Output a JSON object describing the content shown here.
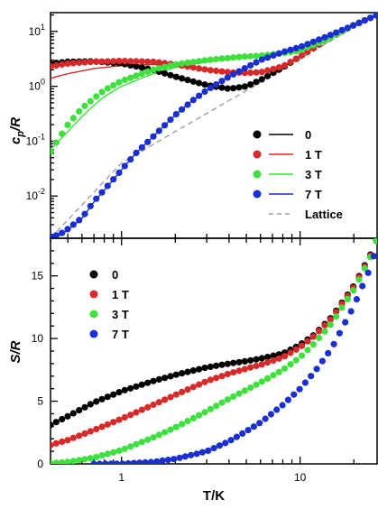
{
  "chart_data": [
    {
      "type": "scatter",
      "panel": "top",
      "ylabel_base": "c",
      "ylabel_sub": "p",
      "ylabel_tail": "/R",
      "xscale": "log",
      "yscale": "log",
      "xlim": [
        0.4,
        27
      ],
      "ylim": [
        0.0017,
        22
      ],
      "yticks": [
        {
          "value": 0.01,
          "base": "10",
          "exp": "-2"
        },
        {
          "value": 0.1,
          "base": "10",
          "exp": "-1"
        },
        {
          "value": 1,
          "base": "10",
          "exp": "0"
        },
        {
          "value": 10,
          "base": "10",
          "exp": "1"
        }
      ],
      "legend_position": "right",
      "series": [
        {
          "name": "0",
          "color": "#000000",
          "points": [
            [
              0.4,
              2.6
            ],
            [
              0.5,
              2.8
            ],
            [
              0.7,
              2.85
            ],
            [
              1,
              2.6
            ],
            [
              1.5,
              2.0
            ],
            [
              2,
              1.5
            ],
            [
              3,
              1.05
            ],
            [
              4,
              0.9
            ],
            [
              5,
              1.0
            ],
            [
              6,
              1.3
            ],
            [
              8,
              2.2
            ],
            [
              10,
              3.5
            ],
            [
              14,
              7
            ],
            [
              20,
              13
            ],
            [
              27,
              20
            ]
          ],
          "fit": [
            [
              0.4,
              2.4
            ],
            [
              0.5,
              2.7
            ],
            [
              0.7,
              2.8
            ],
            [
              1,
              2.55
            ],
            [
              1.5,
              1.95
            ],
            [
              2,
              1.45
            ],
            [
              3,
              1.0
            ],
            [
              4,
              0.9
            ],
            [
              5,
              1.0
            ],
            [
              6,
              1.3
            ],
            [
              8,
              2.2
            ],
            [
              10,
              3.5
            ],
            [
              14,
              7
            ],
            [
              20,
              13
            ],
            [
              27,
              20
            ]
          ]
        },
        {
          "name": "1 T",
          "color": "#d62a2a",
          "points": [
            [
              0.4,
              2.3
            ],
            [
              0.5,
              2.6
            ],
            [
              0.7,
              2.8
            ],
            [
              1,
              2.9
            ],
            [
              1.5,
              2.8
            ],
            [
              2,
              2.5
            ],
            [
              3,
              2.0
            ],
            [
              4,
              1.8
            ],
            [
              5,
              1.75
            ],
            [
              6,
              1.8
            ],
            [
              8,
              2.3
            ],
            [
              10,
              3.5
            ],
            [
              14,
              7
            ],
            [
              20,
              13
            ],
            [
              27,
              20
            ]
          ],
          "fit": [
            [
              0.4,
              1.4
            ],
            [
              0.5,
              1.7
            ],
            [
              0.7,
              2.1
            ],
            [
              1,
              2.4
            ],
            [
              1.5,
              2.5
            ],
            [
              2,
              2.3
            ],
            [
              3,
              1.95
            ],
            [
              4,
              1.8
            ],
            [
              5,
              1.75
            ],
            [
              6,
              1.8
            ],
            [
              8,
              2.3
            ],
            [
              10,
              3.5
            ],
            [
              14,
              7
            ],
            [
              20,
              13
            ],
            [
              27,
              20
            ]
          ]
        },
        {
          "name": "3 T",
          "color": "#3ee03e",
          "points": [
            [
              0.4,
              0.065
            ],
            [
              0.5,
              0.2
            ],
            [
              0.6,
              0.4
            ],
            [
              0.7,
              0.6
            ],
            [
              0.8,
              0.85
            ],
            [
              1,
              1.25
            ],
            [
              1.5,
              2.0
            ],
            [
              2,
              2.5
            ],
            [
              3,
              3.0
            ],
            [
              4,
              3.3
            ],
            [
              5,
              3.5
            ],
            [
              6,
              3.6
            ],
            [
              8,
              4
            ],
            [
              10,
              4.5
            ],
            [
              14,
              7
            ],
            [
              20,
              13
            ],
            [
              27,
              20
            ]
          ],
          "fit": [
            [
              0.4,
              0.07
            ],
            [
              0.5,
              0.15
            ],
            [
              0.6,
              0.28
            ],
            [
              0.7,
              0.45
            ],
            [
              0.8,
              0.65
            ],
            [
              1,
              1.0
            ],
            [
              1.5,
              1.7
            ],
            [
              2,
              2.2
            ],
            [
              3,
              2.8
            ],
            [
              4,
              3.1
            ],
            [
              5,
              3.3
            ],
            [
              6,
              3.5
            ],
            [
              8,
              3.9
            ],
            [
              10,
              4.5
            ],
            [
              14,
              7
            ],
            [
              20,
              13
            ],
            [
              27,
              20
            ]
          ]
        },
        {
          "name": "7 T",
          "color": "#1a2fd0",
          "points": [
            [
              0.4,
              0.0018
            ],
            [
              0.45,
              0.002
            ],
            [
              0.5,
              0.0025
            ],
            [
              0.6,
              0.004
            ],
            [
              0.7,
              0.008
            ],
            [
              0.8,
              0.013
            ],
            [
              1,
              0.03
            ],
            [
              1.2,
              0.06
            ],
            [
              1.5,
              0.12
            ],
            [
              2,
              0.3
            ],
            [
              2.5,
              0.55
            ],
            [
              3,
              0.85
            ],
            [
              4,
              1.5
            ],
            [
              5,
              2.2
            ],
            [
              6,
              3.0
            ],
            [
              8,
              4.2
            ],
            [
              10,
              5.2
            ],
            [
              14,
              8
            ],
            [
              20,
              13
            ],
            [
              27,
              20
            ]
          ],
          "fit": [
            [
              0.4,
              0.0017
            ],
            [
              0.45,
              0.0019
            ],
            [
              0.5,
              0.0024
            ],
            [
              0.6,
              0.0039
            ],
            [
              0.7,
              0.0078
            ],
            [
              0.8,
              0.0128
            ],
            [
              1,
              0.03
            ],
            [
              1.2,
              0.06
            ],
            [
              1.5,
              0.12
            ],
            [
              2,
              0.3
            ],
            [
              2.5,
              0.55
            ],
            [
              3,
              0.85
            ],
            [
              4,
              1.5
            ],
            [
              5,
              2.2
            ],
            [
              6,
              3.0
            ],
            [
              8,
              4.2
            ],
            [
              10,
              5.2
            ],
            [
              14,
              8
            ],
            [
              20,
              13
            ],
            [
              27,
              20
            ]
          ]
        }
      ],
      "lattice": {
        "name": "Lattice",
        "color": "#9a9a9a",
        "points": [
          [
            0.4,
            0.0017
          ],
          [
            1,
            0.04
          ],
          [
            2,
            0.15
          ],
          [
            4,
            0.55
          ],
          [
            8,
            2.0
          ],
          [
            14,
            6
          ],
          [
            20,
            12
          ],
          [
            27,
            20
          ]
        ]
      }
    },
    {
      "type": "scatter",
      "panel": "bottom",
      "ylabel": "S/R",
      "xlabel": "T/K",
      "xscale": "log",
      "yscale": "linear",
      "xlim": [
        0.4,
        27
      ],
      "ylim": [
        0,
        18
      ],
      "xticks": [
        {
          "value": 1,
          "label": "1"
        },
        {
          "value": 10,
          "label": "10"
        }
      ],
      "yticks": [
        {
          "value": 0,
          "label": "0"
        },
        {
          "value": 5,
          "label": "5"
        },
        {
          "value": 10,
          "label": "10"
        },
        {
          "value": 15,
          "label": "15"
        }
      ],
      "legend_position": "top-left",
      "series": [
        {
          "name": "0",
          "color": "#000000",
          "points": [
            [
              0.4,
              3.1
            ],
            [
              0.5,
              3.8
            ],
            [
              0.7,
              4.9
            ],
            [
              1,
              5.8
            ],
            [
              1.5,
              6.6
            ],
            [
              2,
              7.1
            ],
            [
              3,
              7.7
            ],
            [
              4,
              8.0
            ],
            [
              5,
              8.2
            ],
            [
              6,
              8.4
            ],
            [
              8,
              8.8
            ],
            [
              10,
              9.5
            ],
            [
              12,
              10.3
            ],
            [
              15,
              11.7
            ],
            [
              20,
              14.2
            ],
            [
              25,
              16.8
            ],
            [
              27,
              18
            ]
          ]
        },
        {
          "name": "1 T",
          "color": "#d62a2a",
          "points": [
            [
              0.4,
              1.5
            ],
            [
              0.5,
              1.9
            ],
            [
              0.7,
              2.7
            ],
            [
              1,
              3.6
            ],
            [
              1.5,
              4.7
            ],
            [
              2,
              5.5
            ],
            [
              3,
              6.6
            ],
            [
              4,
              7.2
            ],
            [
              5,
              7.6
            ],
            [
              6,
              7.9
            ],
            [
              8,
              8.5
            ],
            [
              10,
              9.3
            ],
            [
              12,
              10.2
            ],
            [
              15,
              11.6
            ],
            [
              20,
              14.1
            ],
            [
              25,
              16.7
            ],
            [
              27,
              18
            ]
          ]
        },
        {
          "name": "3 T",
          "color": "#3ee03e",
          "points": [
            [
              0.4,
              0.05
            ],
            [
              0.5,
              0.15
            ],
            [
              0.7,
              0.5
            ],
            [
              1,
              1.1
            ],
            [
              1.5,
              2.1
            ],
            [
              2,
              2.9
            ],
            [
              3,
              4.2
            ],
            [
              4,
              5.2
            ],
            [
              5,
              5.9
            ],
            [
              6,
              6.5
            ],
            [
              8,
              7.5
            ],
            [
              10,
              8.5
            ],
            [
              12,
              9.6
            ],
            [
              15,
              11.2
            ],
            [
              20,
              13.9
            ],
            [
              25,
              16.6
            ],
            [
              27,
              18
            ]
          ]
        },
        {
          "name": "7 T",
          "color": "#1a2fd0",
          "points": [
            [
              0.7,
              0.0
            ],
            [
              1,
              0.01
            ],
            [
              1.5,
              0.15
            ],
            [
              2,
              0.4
            ],
            [
              3,
              1.0
            ],
            [
              4,
              1.8
            ],
            [
              5,
              2.6
            ],
            [
              6,
              3.3
            ],
            [
              8,
              4.7
            ],
            [
              10,
              6.0
            ],
            [
              12,
              7.3
            ],
            [
              15,
              9.2
            ],
            [
              20,
              12.6
            ],
            [
              25,
              15.8
            ],
            [
              27,
              17.5
            ]
          ]
        }
      ]
    }
  ]
}
